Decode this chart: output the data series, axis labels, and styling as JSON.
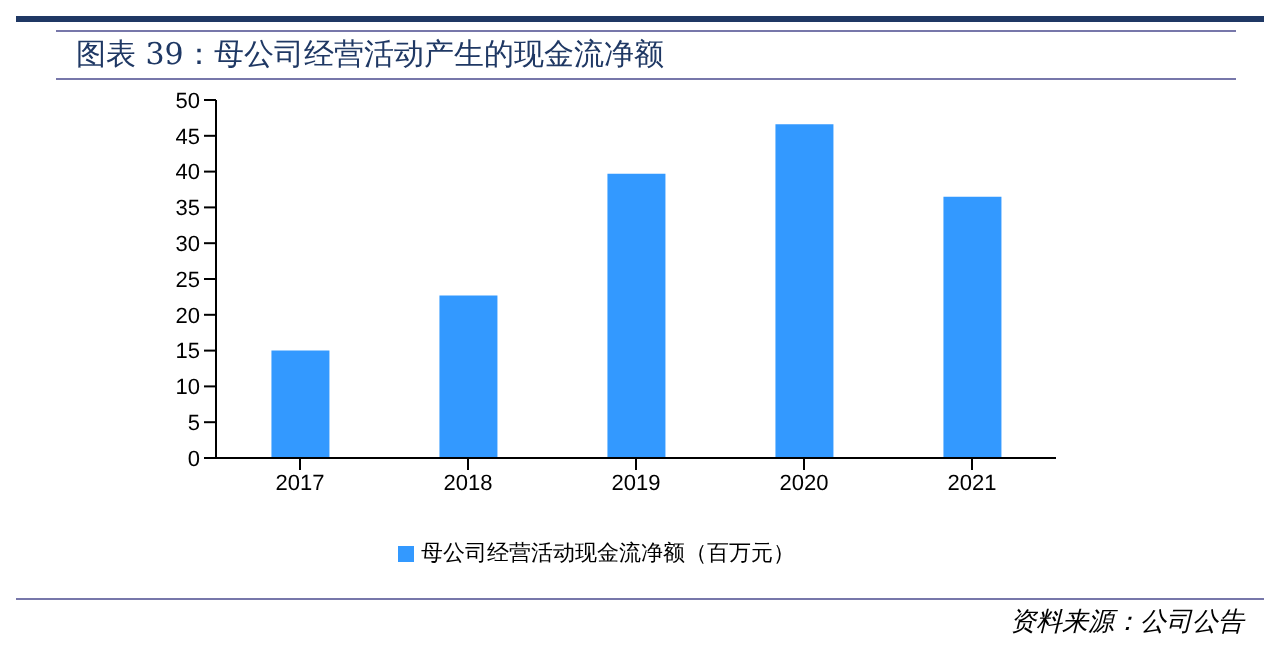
{
  "chart_data": {
    "type": "bar",
    "title": "图表 39：母公司经营活动产生的现金流净额",
    "categories": [
      "2017",
      "2018",
      "2019",
      "2020",
      "2021"
    ],
    "series": [
      {
        "name": "母公司经营活动现金流净额（百万元）",
        "color": "#3399ff",
        "values": [
          15.0,
          22.7,
          39.7,
          46.6,
          36.5
        ]
      }
    ],
    "ylim": [
      0,
      50
    ],
    "yticks": [
      0,
      5,
      10,
      15,
      20,
      25,
      30,
      35,
      40,
      45,
      50
    ],
    "grid": false,
    "legend": "bottom",
    "annotations": [
      "资料来源：公司公告"
    ]
  }
}
